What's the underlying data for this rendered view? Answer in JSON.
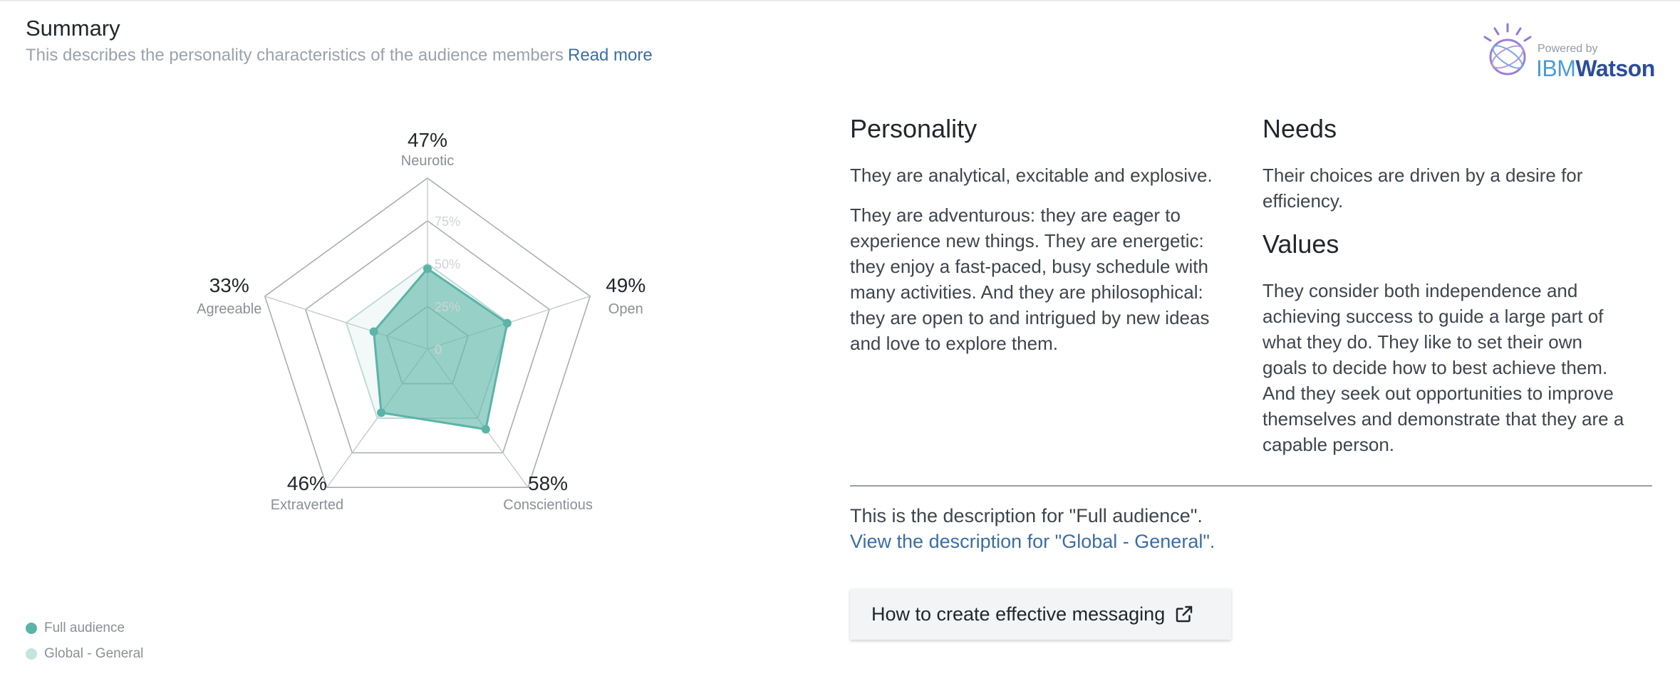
{
  "summary": {
    "title": "Summary",
    "subtitle": "This describes the personality characteristics of the audience members",
    "read_more": "Read more"
  },
  "branding": {
    "powered_by": "Powered by",
    "ibm": "IBM",
    "watson": "Watson"
  },
  "chart_data": {
    "type": "radar",
    "axes": [
      {
        "label": "Neurotic",
        "value_label": "47%",
        "value": 47
      },
      {
        "label": "Open",
        "value_label": "49%",
        "value": 49
      },
      {
        "label": "Conscientious",
        "value_label": "58%",
        "value": 58
      },
      {
        "label": "Extraverted",
        "value_label": "46%",
        "value": 46
      },
      {
        "label": "Agreeable",
        "value_label": "33%",
        "value": 33
      }
    ],
    "ring_labels": [
      "0",
      "25%",
      "50%",
      "75%"
    ],
    "series": [
      {
        "name": "Full audience",
        "values": [
          47,
          49,
          58,
          46,
          33
        ],
        "color": "#5ab4a7"
      },
      {
        "name": "Global - General",
        "values": [
          50,
          50,
          50,
          50,
          50
        ],
        "color": "#c4e4de"
      }
    ]
  },
  "legend": {
    "full_audience": "Full audience",
    "global_general": "Global - General"
  },
  "personality": {
    "title": "Personality",
    "p1": "They are analytical, excitable and explosive.",
    "p2_lines": [
      "They are adventurous: they are eager to",
      "experience new things. They are energetic:",
      "they enjoy a fast-paced, busy schedule with",
      "many activities. And they are philosophical:",
      "they are open to and intrigued by new ideas",
      "and love to explore them."
    ]
  },
  "needs": {
    "title": "Needs",
    "text_lines": [
      "Their choices are driven by a desire for",
      "efficiency."
    ]
  },
  "values": {
    "title": "Values",
    "text_lines": [
      "They consider both independence and",
      "achieving success to guide a large part of",
      "what they do. They like to set their own",
      "goals to decide how to best achieve them.",
      "And they seek out opportunities to improve",
      "themselves and demonstrate that they are a",
      "capable person."
    ]
  },
  "description": {
    "current": "This is the description for \"Full audience\".",
    "link": "View the description for \"Global - General\"."
  },
  "messaging_button": {
    "label": "How to create effective messaging"
  },
  "colors": {
    "full_audience": "#5ab4a7",
    "global_general": "#c4e4de",
    "link": "#3b6ea5"
  }
}
